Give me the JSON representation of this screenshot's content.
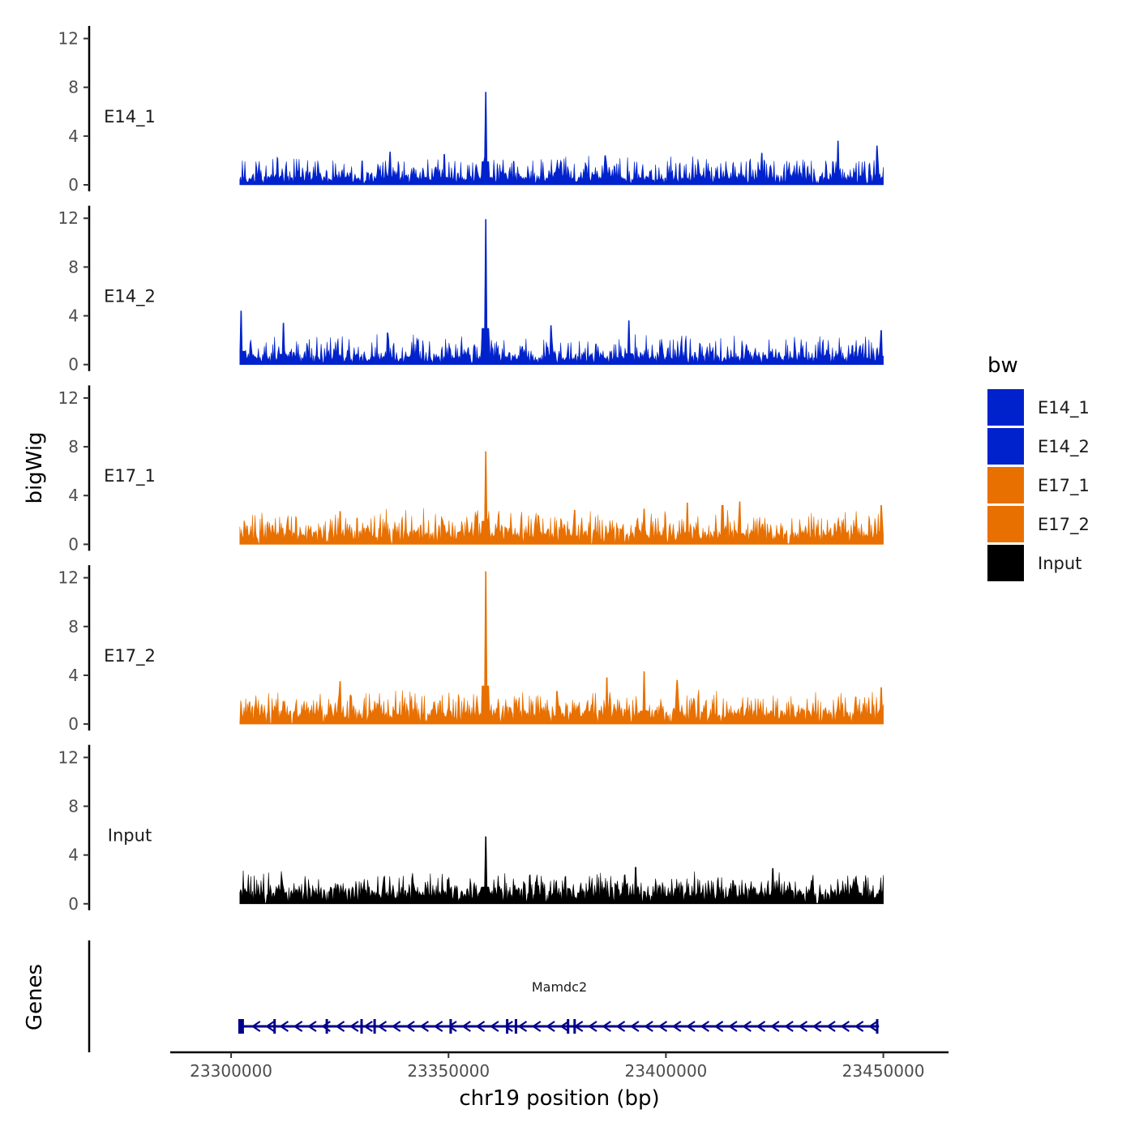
{
  "chart_data": {
    "type": "area",
    "title": "",
    "xlabel": "chr19 position (bp)",
    "ylabel": "bigWig",
    "genes_label": "Genes",
    "xlim": [
      23286000,
      23465000
    ],
    "data_range": [
      23302000,
      23450000
    ],
    "ylim": [
      0,
      12.5
    ],
    "x_ticks": [
      23300000,
      23350000,
      23400000,
      23450000
    ],
    "x_tick_labels": [
      "23300000",
      "23350000",
      "23400000",
      "23450000"
    ],
    "y_ticks": [
      0,
      4,
      8,
      12
    ],
    "y_tick_labels": [
      "0",
      "4",
      "8",
      "12"
    ],
    "legend": {
      "title": "bw",
      "position": "right",
      "entries": [
        {
          "name": "E14_1",
          "color": "#0022CC"
        },
        {
          "name": "E14_2",
          "color": "#0022CC"
        },
        {
          "name": "E17_1",
          "color": "#E87000"
        },
        {
          "name": "E17_2",
          "color": "#E87000"
        },
        {
          "name": "Input",
          "color": "#000000"
        }
      ]
    },
    "series": [
      {
        "name": "E14_1",
        "color": "#0022CC",
        "baseline": 0.5,
        "noise": 1.3,
        "peaks": [
          {
            "x": 23358500,
            "y": 7.6
          },
          {
            "x": 23336500,
            "y": 2.7
          },
          {
            "x": 23349000,
            "y": 2.5
          },
          {
            "x": 23386000,
            "y": 2.4
          },
          {
            "x": 23422000,
            "y": 2.6
          },
          {
            "x": 23439500,
            "y": 3.6
          },
          {
            "x": 23448500,
            "y": 3.2
          }
        ]
      },
      {
        "name": "E14_2",
        "color": "#0022CC",
        "baseline": 0.5,
        "noise": 1.3,
        "peaks": [
          {
            "x": 23358500,
            "y": 11.9
          },
          {
            "x": 23302300,
            "y": 4.4
          },
          {
            "x": 23312000,
            "y": 3.4
          },
          {
            "x": 23336000,
            "y": 2.6
          },
          {
            "x": 23373500,
            "y": 3.2
          },
          {
            "x": 23391500,
            "y": 3.6
          },
          {
            "x": 23449500,
            "y": 2.8
          }
        ]
      },
      {
        "name": "E17_1",
        "color": "#E87000",
        "baseline": 0.8,
        "noise": 1.4,
        "peaks": [
          {
            "x": 23358500,
            "y": 7.6
          },
          {
            "x": 23325000,
            "y": 2.7
          },
          {
            "x": 23379000,
            "y": 2.8
          },
          {
            "x": 23395000,
            "y": 2.9
          },
          {
            "x": 23405000,
            "y": 3.4
          },
          {
            "x": 23413000,
            "y": 3.2
          },
          {
            "x": 23417000,
            "y": 3.5
          },
          {
            "x": 23449500,
            "y": 3.2
          }
        ]
      },
      {
        "name": "E17_2",
        "color": "#E87000",
        "baseline": 0.8,
        "noise": 1.4,
        "peaks": [
          {
            "x": 23358500,
            "y": 12.5
          },
          {
            "x": 23325000,
            "y": 3.5
          },
          {
            "x": 23375000,
            "y": 2.7
          },
          {
            "x": 23386500,
            "y": 3.8
          },
          {
            "x": 23395000,
            "y": 4.3
          },
          {
            "x": 23402500,
            "y": 3.6
          },
          {
            "x": 23449500,
            "y": 3.0
          }
        ]
      },
      {
        "name": "Input",
        "color": "#000000",
        "baseline": 0.8,
        "noise": 1.2,
        "peaks": [
          {
            "x": 23358500,
            "y": 5.5
          },
          {
            "x": 23393000,
            "y": 3.0
          },
          {
            "x": 23424500,
            "y": 2.9
          }
        ]
      }
    ],
    "gene_track": {
      "gene_name": "Mamdc2",
      "start": 23302000,
      "end": 23449000,
      "strand": "-",
      "color": "#00008B",
      "exons": [
        23302300,
        23310000,
        23322000,
        23330000,
        23333000,
        23350500,
        23363500,
        23365500,
        23377500,
        23379000,
        23448600
      ]
    }
  }
}
